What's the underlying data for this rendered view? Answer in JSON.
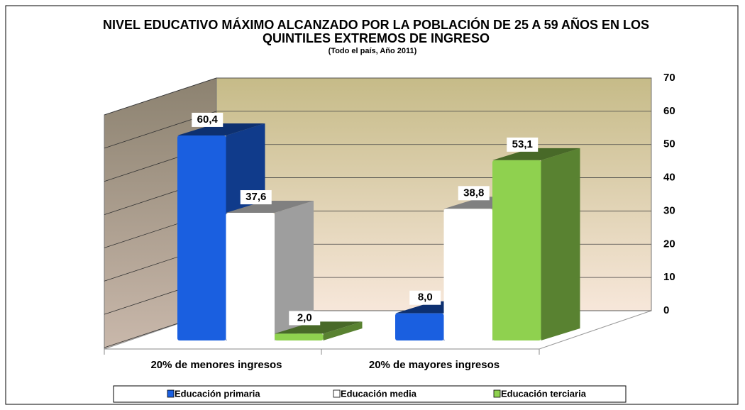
{
  "chart_data": {
    "type": "bar3d",
    "title": "NIVEL EDUCATIVO MÁXIMO ALCANZADO POR LA POBLACIÓN DE 25 A 59 AÑOS EN LOS QUINTILES EXTREMOS DE INGRESO",
    "subtitle": "(Todo el país, Año 2011)",
    "categories": [
      "20% de menores ingresos",
      "20% de mayores ingresos"
    ],
    "series": [
      {
        "name": "Educación primaria",
        "color": "#1a5fe0",
        "values": [
          60.4,
          8.0
        ],
        "value_labels": [
          "60,4",
          "8,0"
        ]
      },
      {
        "name": "Educación media",
        "color": "#ffffff",
        "values": [
          37.6,
          38.8
        ],
        "value_labels": [
          "37,6",
          "38,8"
        ]
      },
      {
        "name": "Educación terciaria",
        "color": "#8fd14f",
        "values": [
          2.0,
          53.1
        ],
        "value_labels": [
          "2,0",
          "53,1"
        ]
      }
    ],
    "ylim": [
      0,
      70
    ],
    "yticks": [
      0,
      10,
      20,
      30,
      40,
      50,
      60,
      70
    ],
    "grid": true,
    "legend": "bottom"
  }
}
